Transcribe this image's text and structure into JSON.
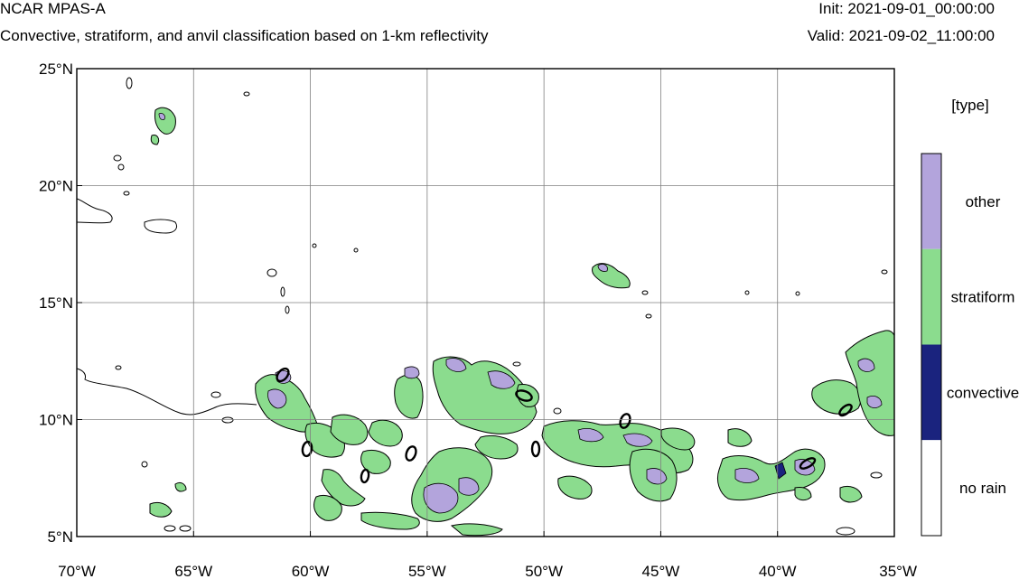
{
  "header": {
    "model_title": "NCAR MPAS-A",
    "description": "Convective, stratiform, and anvil classification based on 1-km reflectivity",
    "init": "Init: 2021-09-01_00:00:00",
    "valid": "Valid: 2021-09-02_11:00:00"
  },
  "map": {
    "lat_labels": [
      "25°N",
      "20°N",
      "15°N",
      "10°N",
      "5°N"
    ],
    "lon_labels": [
      "70°W",
      "65°W",
      "60°W",
      "55°W",
      "50°W",
      "45°W",
      "40°W",
      "35°W"
    ],
    "lat_range": [
      5,
      25
    ],
    "lon_range": [
      -70,
      -35
    ],
    "gridlines": true
  },
  "legend": {
    "title": "[type]",
    "items": [
      {
        "label": "other",
        "color": "#b3a4dc"
      },
      {
        "label": "stratiform",
        "color": "#8bdc8e"
      },
      {
        "label": "convective",
        "color": "#1a237e"
      },
      {
        "label": "no rain",
        "color": "#ffffff"
      }
    ]
  },
  "colors": {
    "other": "#b3a4dc",
    "stratiform": "#8bdc8e",
    "convective": "#1a237e",
    "outline": "#000000"
  }
}
